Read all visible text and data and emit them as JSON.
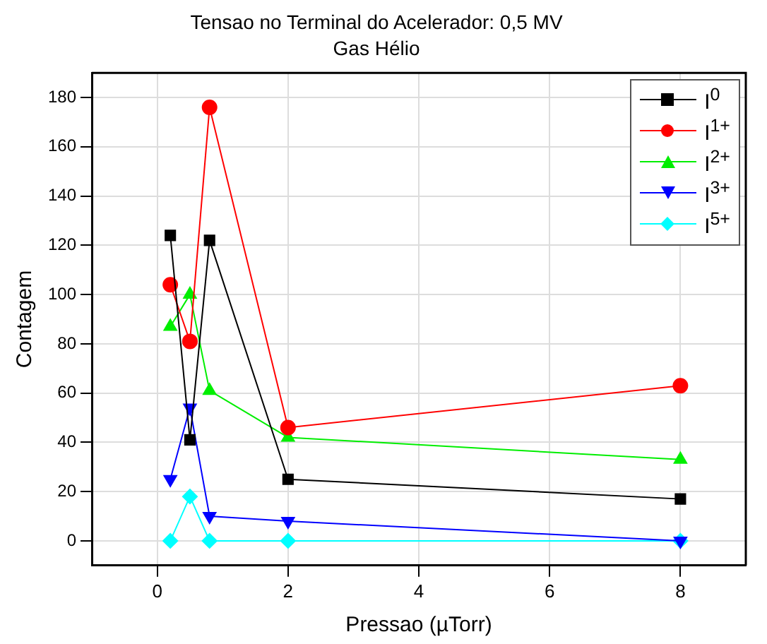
{
  "chart_data": {
    "type": "line",
    "title": "Tensao no Terminal do Acelerador: 0,5 MV",
    "subtitle": "Gas Hélio",
    "xlabel": "Pressao (µTorr)",
    "ylabel": "Contagem",
    "x": [
      0.2,
      0.5,
      0.8,
      2,
      8
    ],
    "series": [
      {
        "name": "I$^{0}$",
        "color": "#000000",
        "marker": "square",
        "values": [
          124,
          41,
          122,
          25,
          17
        ]
      },
      {
        "name": "I$^{1+}$",
        "color": "#ff0000",
        "marker": "circle",
        "values": [
          104,
          81,
          176,
          46,
          63
        ]
      },
      {
        "name": "I$^{2+}$",
        "color": "#00ee00",
        "marker": "triangle",
        "values": [
          87,
          100,
          61,
          42,
          33
        ]
      },
      {
        "name": "I$^{3+}$",
        "color": "#0000ff",
        "marker": "triangle-down",
        "values": [
          25,
          54,
          10,
          8,
          0
        ]
      },
      {
        "name": "I$^{5+}$",
        "color": "#00ffff",
        "marker": "diamond",
        "values": [
          0,
          18,
          0,
          0,
          0
        ]
      }
    ],
    "xlim": [
      -1,
      9
    ],
    "xticks": [
      0,
      2,
      4,
      6,
      8
    ],
    "ylim": [
      -10,
      190
    ],
    "yticks": [
      0,
      20,
      40,
      60,
      80,
      100,
      120,
      140,
      160,
      180
    ],
    "grid": true,
    "legend": "top right",
    "line_style": "solid"
  }
}
